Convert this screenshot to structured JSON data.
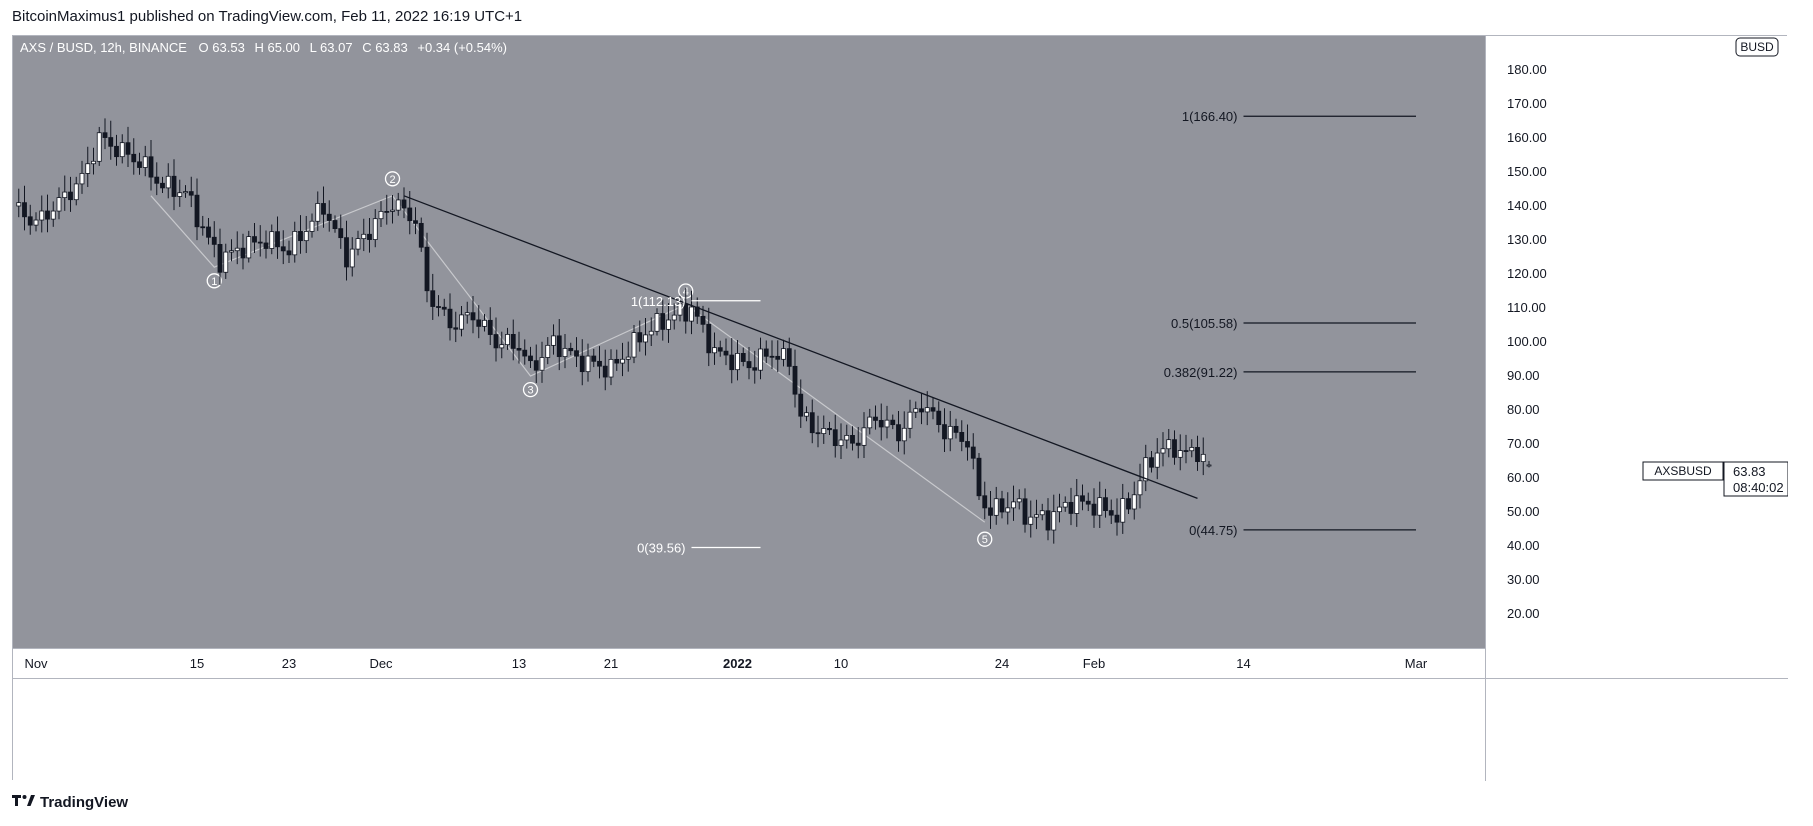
{
  "publisher": "BitcoinMaximus1 published on TradingView.com, Feb 11, 2022 16:19 UTC+1",
  "footer": {
    "brand": "TradingView",
    "logo_icon": "tradingview-logo-icon"
  },
  "header": {
    "symbol": "AXS / BUSD, 12h, BINANCE",
    "o_label": "O",
    "o_value": "63.53",
    "h_label": "H",
    "h_value": "65.00",
    "l_label": "L",
    "l_value": "63.07",
    "c_label": "C",
    "c_value": "63.83",
    "change": "+0.34 (+0.54%)"
  },
  "currency_badge": "BUSD",
  "price_tag": {
    "symbol": "AXSBUSD",
    "price": "63.83",
    "countdown": "08:40:02"
  },
  "colors": {
    "background": "#92949c",
    "bull": "#ffffff",
    "bear": "#131722",
    "trendline": "#131722",
    "wave_path": "#c8c9cd",
    "label": "#ffffff"
  },
  "chart_data": {
    "type": "candlestick",
    "title": "AXS / BUSD, 12h, BINANCE",
    "ylim": [
      10,
      190
    ],
    "y_ticks": [
      20,
      30,
      40,
      50,
      60,
      70,
      80,
      90,
      100,
      110,
      120,
      130,
      140,
      150,
      160,
      170,
      180
    ],
    "x_ticks": [
      {
        "date": "2021-11-01",
        "label": "Nov"
      },
      {
        "date": "2021-11-15",
        "label": "15"
      },
      {
        "date": "2021-11-23",
        "label": "23"
      },
      {
        "date": "2021-12-01",
        "label": "Dec"
      },
      {
        "date": "2021-12-13",
        "label": "13"
      },
      {
        "date": "2021-12-21",
        "label": "21"
      },
      {
        "date": "2022-01-01",
        "label": "2022"
      },
      {
        "date": "2022-01-10",
        "label": "10"
      },
      {
        "date": "2022-01-24",
        "label": "24"
      },
      {
        "date": "2022-02-01",
        "label": "Feb"
      },
      {
        "date": "2022-02-14",
        "label": "14"
      },
      {
        "date": "2022-03-01",
        "label": "Mar"
      }
    ],
    "x_range": [
      "2021-10-30",
      "2022-03-07"
    ],
    "close_anchors": [
      [
        "2021-10-30T00:00",
        140
      ],
      [
        "2021-11-01T00:00",
        135
      ],
      [
        "2021-11-03T00:00",
        141
      ],
      [
        "2021-11-05T00:00",
        148
      ],
      [
        "2021-11-06T12:00",
        160
      ],
      [
        "2021-11-08T00:00",
        157
      ],
      [
        "2021-11-10T00:00",
        153
      ],
      [
        "2021-11-12T00:00",
        146
      ],
      [
        "2021-11-14T00:00",
        144
      ],
      [
        "2021-11-16T00:00",
        130
      ],
      [
        "2021-11-17T00:00",
        124
      ],
      [
        "2021-11-19T00:00",
        128
      ],
      [
        "2021-11-21T00:00",
        130
      ],
      [
        "2021-11-23T00:00",
        127
      ],
      [
        "2021-11-26T00:00",
        140
      ],
      [
        "2021-11-28T00:00",
        125
      ],
      [
        "2021-12-02T00:00",
        141
      ],
      [
        "2021-12-04T00:00",
        136
      ],
      [
        "2021-12-05T00:00",
        115
      ],
      [
        "2021-12-07T00:00",
        105
      ],
      [
        "2021-12-09T00:00",
        108
      ],
      [
        "2021-12-11T00:00",
        100
      ],
      [
        "2021-12-13T00:00",
        99
      ],
      [
        "2021-12-14T00:00",
        92
      ],
      [
        "2021-12-16T00:00",
        100
      ],
      [
        "2021-12-18T00:00",
        95
      ],
      [
        "2021-12-21T00:00",
        92
      ],
      [
        "2021-12-24T00:00",
        103
      ],
      [
        "2021-12-26T00:00",
        107
      ],
      [
        "2021-12-28T00:00",
        110
      ],
      [
        "2021-12-30T00:00",
        97
      ],
      [
        "2022-01-02T00:00",
        93
      ],
      [
        "2022-01-04T00:00",
        97
      ],
      [
        "2022-01-05T12:00",
        94
      ],
      [
        "2022-01-06T12:00",
        78
      ],
      [
        "2022-01-08T00:00",
        74
      ],
      [
        "2022-01-11T00:00",
        70
      ],
      [
        "2022-01-13T00:00",
        78
      ],
      [
        "2022-01-15T00:00",
        73
      ],
      [
        "2022-01-17T00:00",
        82
      ],
      [
        "2022-01-19T00:00",
        74
      ],
      [
        "2022-01-21T00:00",
        71
      ],
      [
        "2022-01-22T00:00",
        55
      ],
      [
        "2022-01-23T00:00",
        50
      ],
      [
        "2022-01-25T00:00",
        53
      ],
      [
        "2022-01-26T00:00",
        49
      ],
      [
        "2022-01-28T00:00",
        48
      ],
      [
        "2022-01-30T00:00",
        53
      ],
      [
        "2022-02-01T00:00",
        52
      ],
      [
        "2022-02-03T00:00",
        49
      ],
      [
        "2022-02-04T00:00",
        52
      ],
      [
        "2022-02-05T00:00",
        60
      ],
      [
        "2022-02-06T12:00",
        68
      ],
      [
        "2022-02-08T00:00",
        69
      ],
      [
        "2022-02-09T00:00",
        67
      ],
      [
        "2022-02-10T00:00",
        68
      ],
      [
        "2022-02-11T00:00",
        63.83
      ]
    ],
    "last_candle": {
      "open": 63.53,
      "high": 65.0,
      "low": 63.07,
      "close": 63.83
    },
    "trendline": [
      [
        "2021-12-03T00:00",
        143
      ],
      [
        "2022-02-10T00:00",
        54
      ]
    ],
    "elliott_waves": [
      {
        "label": "1",
        "date": "2021-11-16T12:00",
        "price": 122,
        "label_date": "2021-11-16T12:00",
        "label_price": 118,
        "position": "below"
      },
      {
        "label": "2",
        "date": "2021-12-02T00:00",
        "price": 143,
        "label_date": "2021-12-02T00:00",
        "label_price": 148,
        "position": "above"
      },
      {
        "label": "3",
        "date": "2021-12-14T00:00",
        "price": 90,
        "label_date": "2021-12-14T00:00",
        "label_price": 86,
        "position": "below"
      },
      {
        "label": "4",
        "date": "2021-12-27T12:00",
        "price": 111,
        "label_date": "2021-12-27T12:00",
        "label_price": 115,
        "position": "above"
      },
      {
        "label": "5",
        "date": "2022-01-22T12:00",
        "price": 47,
        "label_date": "2022-01-22T12:00",
        "label_price": 42,
        "position": "below"
      }
    ],
    "wave_path_start": [
      "2021-11-11T00:00",
      143
    ],
    "fib_levels": [
      {
        "label": "1(112.13)",
        "price": 112.13,
        "from": "2021-12-28T00:00",
        "to": "2022-01-03T00:00",
        "color": "#ffffff"
      },
      {
        "label": "0(39.56)",
        "price": 39.56,
        "from": "2021-12-28T00:00",
        "to": "2022-01-03T00:00",
        "color": "#ffffff"
      },
      {
        "label": "1(166.40)",
        "price": 166.4,
        "from": "2022-02-14T00:00",
        "to": "2022-03-01T00:00",
        "color": "#131722"
      },
      {
        "label": "0.5(105.58)",
        "price": 105.58,
        "from": "2022-02-14T00:00",
        "to": "2022-03-01T00:00",
        "color": "#131722"
      },
      {
        "label": "0.382(91.22)",
        "price": 91.22,
        "from": "2022-02-14T00:00",
        "to": "2022-03-01T00:00",
        "color": "#131722"
      },
      {
        "label": "0(44.75)",
        "price": 44.75,
        "from": "2022-02-14T00:00",
        "to": "2022-03-01T00:00",
        "color": "#131722"
      }
    ]
  }
}
